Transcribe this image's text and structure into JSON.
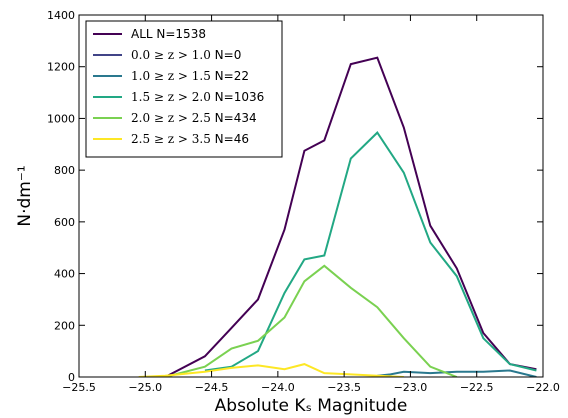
{
  "chart_data": {
    "type": "line",
    "xlabel": "Absolute Kₛ Magnitude",
    "ylabel": "N·dm⁻¹",
    "xlim": [
      -25.5,
      -22.0
    ],
    "ylim": [
      0,
      1400
    ],
    "x_ticks": [
      -25.5,
      -25.0,
      -24.5,
      -24.0,
      -23.5,
      -23.0,
      -22.5,
      -22.0
    ],
    "x_tick_labels": [
      "−25.5",
      "−25.0",
      "−24.5",
      "−24.0",
      "−23.5",
      "−23.0",
      "−22.5",
      "−22.0"
    ],
    "y_ticks": [
      0,
      200,
      400,
      600,
      800,
      1000,
      1200,
      1400
    ],
    "y_tick_labels": [
      "0",
      "200",
      "400",
      "600",
      "800",
      "1000",
      "1200",
      "1400"
    ],
    "legend_position": "top-left",
    "series": [
      {
        "name": "ALL N=1538",
        "legend_math": "",
        "legend_text": "ALL N=1538",
        "color": "#440154",
        "x": [
          -24.85,
          -24.55,
          -24.35,
          -24.15,
          -23.95,
          -23.8,
          -23.65,
          -23.45,
          -23.25,
          -23.05,
          -22.85,
          -22.65,
          -22.45,
          -22.25,
          -22.05
        ],
        "y": [
          0,
          80,
          190,
          300,
          570,
          875,
          915,
          1210,
          1235,
          965,
          585,
          420,
          170,
          50,
          30
        ]
      },
      {
        "name": "0.0≥z>1.0 N=0",
        "legend_math": "0.0 ≥ z > 1.0",
        "legend_text": "N=0",
        "color": "#414487",
        "x": [],
        "y": []
      },
      {
        "name": "1.0≥z>1.5 N=22",
        "legend_math": "1.0 ≥ z > 1.5",
        "legend_text": "N=22",
        "color": "#2a788e",
        "x": [
          -23.25,
          -23.15,
          -23.05,
          -22.85,
          -22.65,
          -22.45,
          -22.25,
          -22.05
        ],
        "y": [
          5,
          10,
          20,
          15,
          20,
          20,
          25,
          0
        ]
      },
      {
        "name": "1.5≥z>2.0 N=1036",
        "legend_math": "1.5 ≥ z > 2.0",
        "legend_text": "N=1036",
        "color": "#22a884",
        "x": [
          -24.55,
          -24.35,
          -24.15,
          -23.95,
          -23.8,
          -23.65,
          -23.45,
          -23.25,
          -23.05,
          -22.85,
          -22.65,
          -22.45,
          -22.25,
          -22.05
        ],
        "y": [
          25,
          40,
          100,
          325,
          455,
          470,
          845,
          945,
          790,
          520,
          390,
          150,
          50,
          25
        ]
      },
      {
        "name": "2.0≥z>2.5 N=434",
        "legend_math": "2.0 ≥ z > 2.5",
        "legend_text": "N=434",
        "color": "#7ad151",
        "x": [
          -24.85,
          -24.55,
          -24.35,
          -24.15,
          -23.95,
          -23.8,
          -23.65,
          -23.45,
          -23.25,
          -23.05,
          -22.85,
          -22.65
        ],
        "y": [
          0,
          40,
          110,
          140,
          230,
          370,
          430,
          345,
          270,
          150,
          40,
          0
        ]
      },
      {
        "name": "2.5≥z>3.5 N=46",
        "legend_math": "2.5 ≥ z > 3.5",
        "legend_text": "N=46",
        "color": "#fde725",
        "x": [
          -25.05,
          -24.85,
          -24.55,
          -24.35,
          -24.15,
          -23.95,
          -23.8,
          -23.65,
          -23.45,
          -23.25,
          -23.05
        ],
        "y": [
          0,
          5,
          20,
          35,
          45,
          30,
          50,
          15,
          10,
          5,
          0
        ]
      }
    ]
  }
}
